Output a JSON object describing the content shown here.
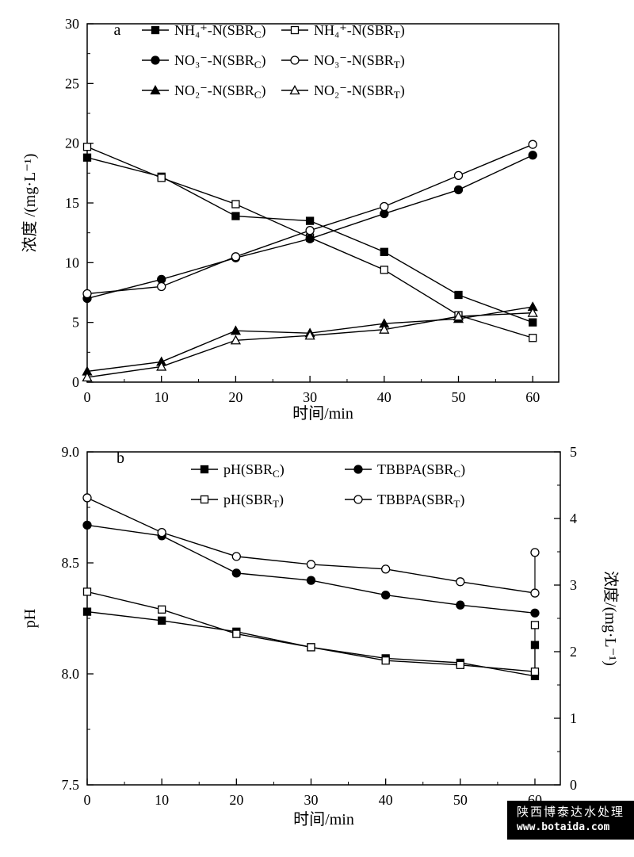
{
  "colors": {
    "foreground": "#000000",
    "background": "#ffffff"
  },
  "watermark": {
    "line1": "陕西博泰达水处理",
    "line2": "www.botaida.com"
  },
  "chart_data": [
    {
      "id": "a",
      "type": "line",
      "panel_label": "a",
      "xlabel": "时间/min",
      "ylabel": "浓度 /(mg·L⁻¹)",
      "xlim": [
        0,
        63.5
      ],
      "ylim": [
        0,
        30
      ],
      "xticks": {
        "values": [
          0,
          10,
          20,
          30,
          40,
          50,
          60
        ],
        "labels": [
          "0",
          "10",
          "20",
          "30",
          "40",
          "50",
          "60"
        ],
        "minor_step": 5
      },
      "yticks": {
        "values": [
          0,
          5,
          10,
          15,
          20,
          25,
          30
        ],
        "labels": [
          "0",
          "5",
          "10",
          "15",
          "20",
          "25",
          "30"
        ],
        "minor_step": 2.5
      },
      "x": [
        0,
        10,
        20,
        30,
        40,
        50,
        60
      ],
      "legend_position": "top-inside",
      "grid": false,
      "series": [
        {
          "name": "NH₄⁺-N(SBR_C)",
          "marker": "square",
          "fill": "filled",
          "values": [
            18.8,
            17.2,
            13.9,
            13.5,
            10.9,
            7.3,
            5.0
          ]
        },
        {
          "name": "NH₄⁺-N(SBR_T)",
          "marker": "square",
          "fill": "open",
          "values": [
            19.7,
            17.1,
            14.9,
            12.1,
            9.4,
            5.6,
            3.7
          ]
        },
        {
          "name": "NO₃⁻-N(SBR_C)",
          "marker": "circle",
          "fill": "filled",
          "values": [
            7.0,
            8.6,
            10.4,
            12.0,
            14.1,
            16.1,
            19.0
          ]
        },
        {
          "name": "NO₃⁻-N(SBR_T)",
          "marker": "circle",
          "fill": "open",
          "values": [
            7.4,
            8.0,
            10.5,
            12.7,
            14.7,
            17.3,
            19.9
          ]
        },
        {
          "name": "NO₂⁻-N(SBR_C)",
          "marker": "triangle",
          "fill": "filled",
          "values": [
            0.9,
            1.7,
            4.3,
            4.1,
            4.9,
            5.3,
            6.3
          ]
        },
        {
          "name": "NO₂⁻-N(SBR_T)",
          "marker": "triangle",
          "fill": "open",
          "values": [
            0.4,
            1.3,
            3.5,
            3.9,
            4.4,
            5.5,
            5.8
          ]
        }
      ]
    },
    {
      "id": "b",
      "type": "line",
      "panel_label": "b",
      "xlabel": "时间/min",
      "ylabel_left": "pH",
      "ylabel_right": "浓度/(mg·L⁻¹)",
      "xlim": [
        0,
        63.4
      ],
      "ylim_left": [
        7.5,
        9.0
      ],
      "ylim_right": [
        0,
        5
      ],
      "xticks": {
        "values": [
          0,
          10,
          20,
          30,
          40,
          50,
          60
        ],
        "labels": [
          "0",
          "10",
          "20",
          "30",
          "40",
          "50",
          "60"
        ],
        "minor_step": 5
      },
      "yticks_left": {
        "values": [
          7.5,
          8.0,
          8.5,
          9.0
        ],
        "labels": [
          "7.5",
          "8.0",
          "8.5",
          "9.0"
        ],
        "minor_step": 0.25
      },
      "yticks_right": {
        "values": [
          0,
          1,
          2,
          3,
          4,
          5
        ],
        "labels": [
          "0",
          "1",
          "2",
          "3",
          "4",
          "5"
        ],
        "minor_step": 0.5
      },
      "x": [
        0,
        10,
        20,
        30,
        40,
        50,
        60
      ],
      "legend_position": "top-inside",
      "grid": false,
      "series": [
        {
          "name": "pH(SBR_C)",
          "axis": "left",
          "marker": "square",
          "fill": "filled",
          "values": [
            8.28,
            8.24,
            8.19,
            8.12,
            8.07,
            8.05,
            7.99
          ],
          "extra_point": {
            "x": 60,
            "value": 8.13
          }
        },
        {
          "name": "pH(SBR_T)",
          "axis": "left",
          "marker": "square",
          "fill": "open",
          "values": [
            8.37,
            8.29,
            8.18,
            8.12,
            8.06,
            8.04,
            8.01
          ],
          "extra_point": {
            "x": 60,
            "value": 8.22
          }
        },
        {
          "name": "TBBPA(SBR_C)",
          "axis": "right",
          "marker": "circle",
          "fill": "filled",
          "values": [
            3.9,
            3.74,
            3.18,
            3.07,
            2.85,
            2.7,
            2.58
          ]
        },
        {
          "name": "TBBPA(SBR_T)",
          "axis": "right",
          "marker": "circle",
          "fill": "open",
          "values": [
            4.31,
            3.79,
            3.43,
            3.31,
            3.24,
            3.05,
            2.88
          ],
          "extra_point": {
            "x": 60,
            "value": 3.49
          }
        }
      ]
    }
  ]
}
